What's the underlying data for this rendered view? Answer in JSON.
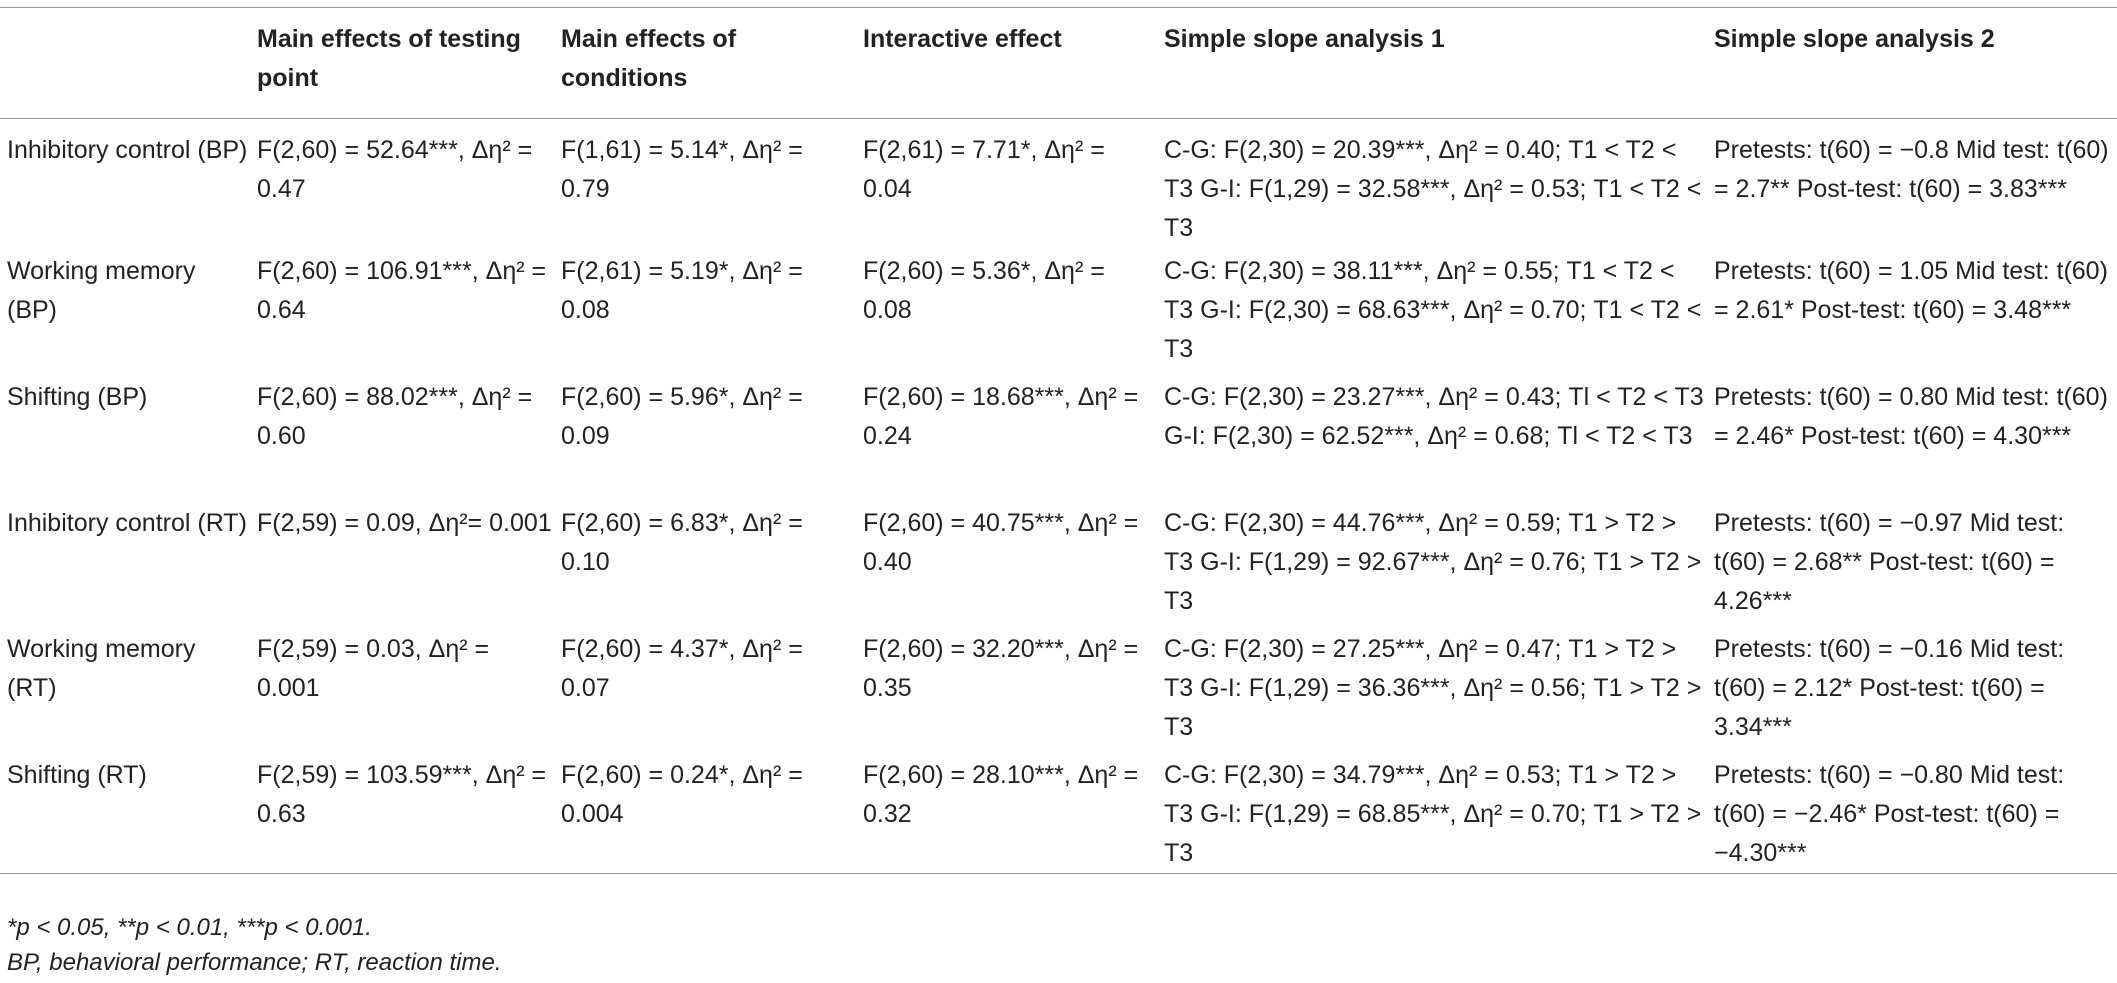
{
  "table": {
    "header": [
      "Main effects of testing point",
      "Main effects of conditions",
      "Interactive effect",
      "Simple slope analysis 1",
      "Simple slope analysis 2"
    ],
    "rows": [
      {
        "label": "Inhibitory control (BP)",
        "cells": [
          "F(2,60) = 52.64***, Δη² = 0.47",
          "F(1,61) = 5.14*, Δη² = 0.79",
          "F(2,61) = 7.71*, Δη² = 0.04",
          "C-G: F(2,30) = 20.39***, Δη² = 0.40; T1 < T2 < T3 G-I: F(1,29) = 32.58***, Δη² = 0.53; T1 < T2 < T3",
          "Pretests: t(60) = −0.8 Mid test: t(60) = 2.7** Post-test: t(60) = 3.83***"
        ]
      },
      {
        "label": "Working memory (BP)",
        "cells": [
          "F(2,60) = 106.91***, Δη² = 0.64",
          "F(2,61) = 5.19*, Δη² = 0.08",
          "F(2,60) = 5.36*, Δη² = 0.08",
          "C-G: F(2,30) = 38.11***, Δη² = 0.55; T1 < T2 < T3 G-I: F(2,30) = 68.63***, Δη² = 0.70; T1 < T2 < T3",
          "Pretests: t(60) = 1.05 Mid test: t(60) = 2.61* Post-test: t(60) = 3.48***"
        ]
      },
      {
        "label": "Shifting (BP)",
        "cells": [
          "F(2,60) = 88.02***, Δη² = 0.60",
          "F(2,60) = 5.96*, Δη² = 0.09",
          "F(2,60) = 18.68***, Δη² = 0.24",
          "C-G: F(2,30) = 23.27***, Δη² = 0.43; Tl < T2 < T3 G-I: F(2,30) = 62.52***, Δη² = 0.68; Tl < T2 < T3",
          "Pretests: t(60) = 0.80 Mid test: t(60) = 2.46* Post-test: t(60) = 4.30***"
        ]
      },
      {
        "label": "Inhibitory control (RT)",
        "cells": [
          "F(2,59) = 0.09, Δη²= 0.001",
          "F(2,60) = 6.83*, Δη² = 0.10",
          "F(2,60) = 40.75***, Δη² = 0.40",
          "C-G: F(2,30) = 44.76***, Δη² = 0.59; T1 > T2 > T3 G-I: F(1,29) = 92.67***, Δη² = 0.76; T1 > T2 > T3",
          "Pretests: t(60) = −0.97 Mid test: t(60) = 2.68** Post-test: t(60) = 4.26***"
        ]
      },
      {
        "label": "Working memory (RT)",
        "cells": [
          "F(2,59) = 0.03, Δη² = 0.001",
          "F(2,60) = 4.37*, Δη² = 0.07",
          "F(2,60) = 32.20***, Δη² = 0.35",
          "C-G: F(2,30) = 27.25***, Δη² = 0.47; T1 > T2 > T3 G-I: F(1,29) = 36.36***, Δη² = 0.56; T1 > T2 > T3",
          "Pretests: t(60) = −0.16 Mid test: t(60) = 2.12* Post-test: t(60) = 3.34***"
        ]
      },
      {
        "label": "Shifting (RT)",
        "cells": [
          "F(2,59) = 103.59***, Δη² = 0.63",
          "F(2,60) = 0.24*, Δη² = 0.004",
          "F(2,60) = 28.10***, Δη² = 0.32",
          "C-G: F(2,30) = 34.79***, Δη² = 0.53; T1 > T2 > T3 G-I: F(1,29) = 68.85***, Δη² = 0.70; T1 > T2 > T3",
          "Pretests: t(60) = −0.80 Mid test: t(60) = −2.46* Post-test: t(60) = −4.30***"
        ]
      }
    ]
  },
  "footnotes": [
    "*p < 0.05, **p < 0.01, ***p < 0.001.",
    "BP, behavioral performance; RT, reaction time."
  ]
}
